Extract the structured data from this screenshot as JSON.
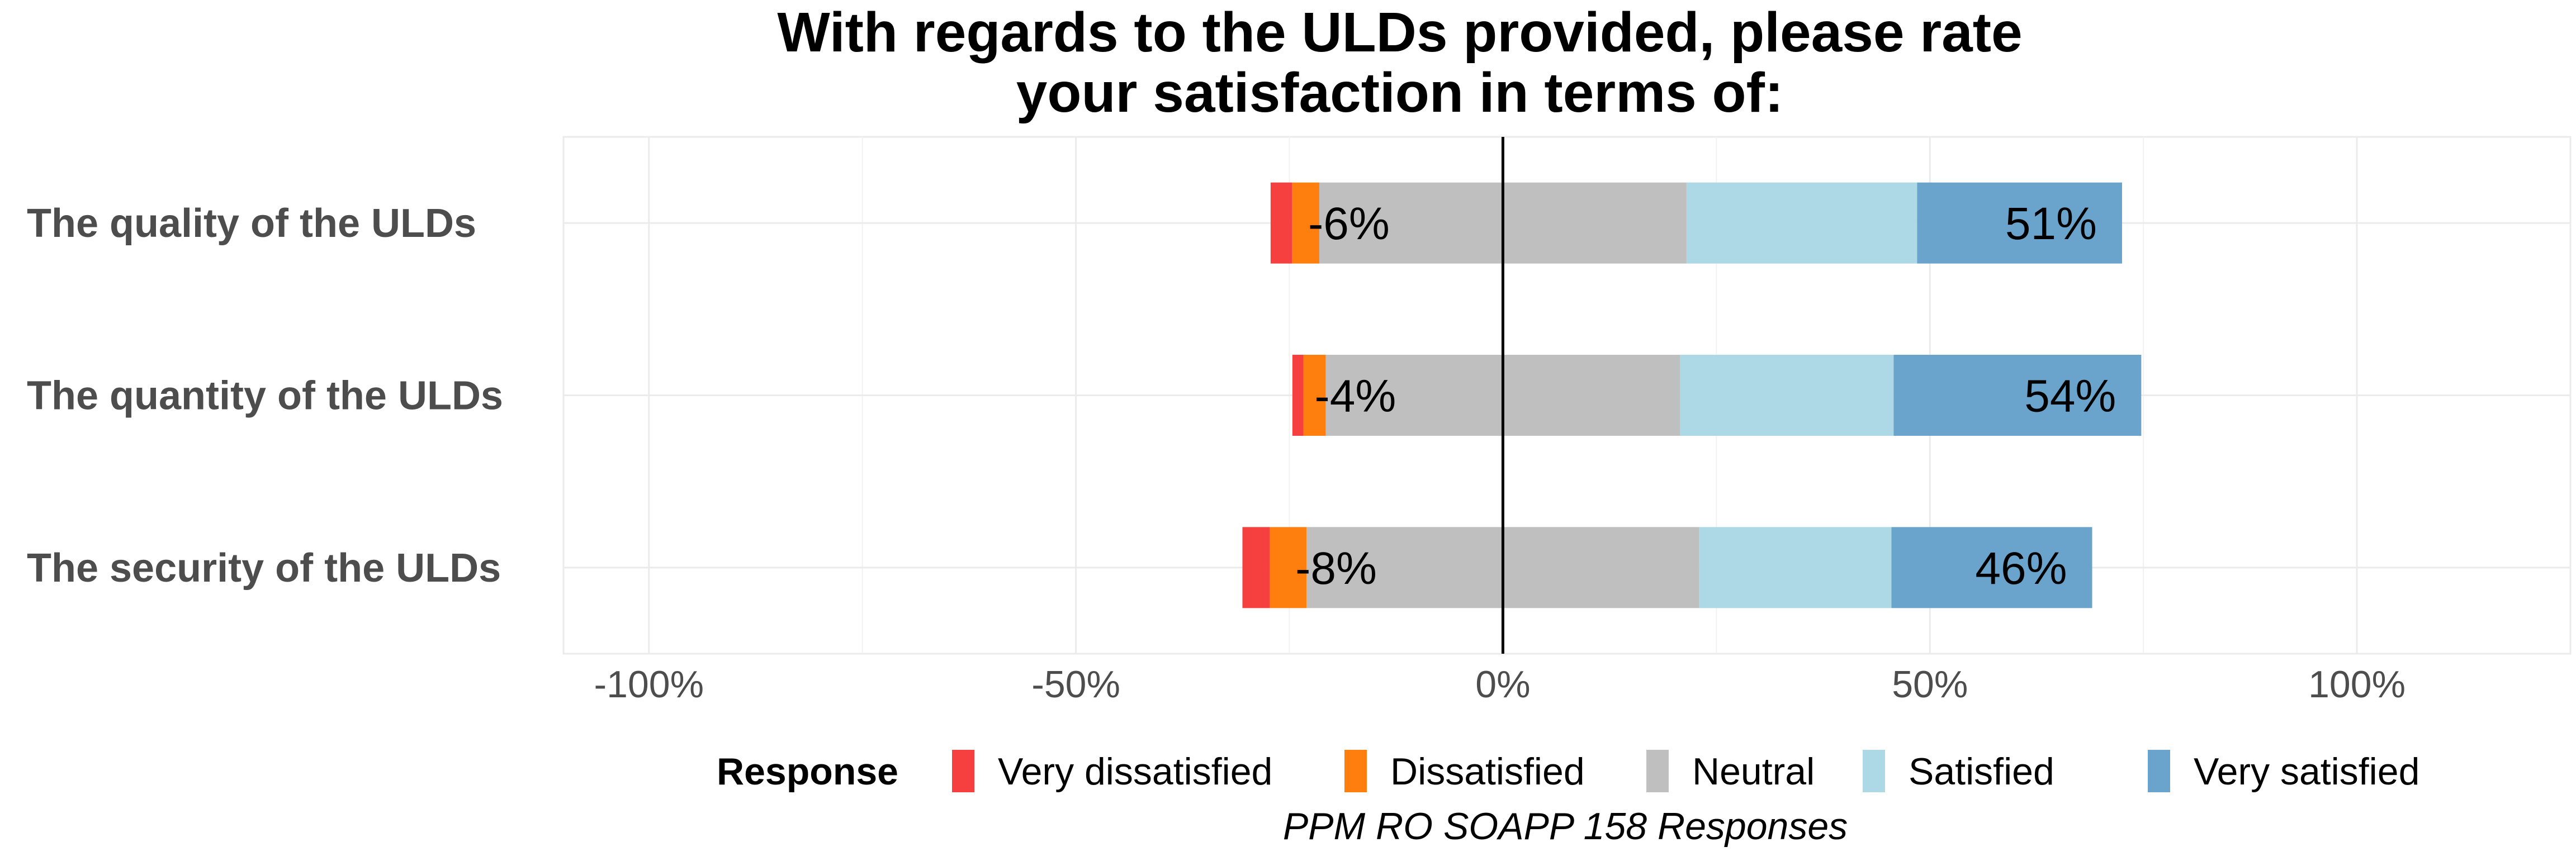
{
  "chart_data": {
    "type": "bar",
    "orientation": "horizontal",
    "stacking": "diverging",
    "title_lines": [
      "With regards to the ULDs provided, please rate",
      "your satisfaction in terms of:"
    ],
    "categories": [
      "The quality of the ULDs",
      "The quantity of the ULDs",
      "The security of the ULDs"
    ],
    "series": [
      {
        "name": "Very dissatisfied",
        "color": "#f5403f",
        "values": [
          2.5,
          1.3,
          3.2
        ]
      },
      {
        "name": "Dissatisfied",
        "color": "#ff7f0e",
        "values": [
          3.2,
          2.6,
          4.3
        ]
      },
      {
        "name": "Neutral",
        "color": "#bfbfbf",
        "values": [
          43,
          41.5,
          46
        ]
      },
      {
        "name": "Satisfied",
        "color": "#add8e6",
        "values": [
          27,
          25,
          22.5
        ]
      },
      {
        "name": "Very satisfied",
        "color": "#6aa4cc",
        "values": [
          24,
          29,
          23.5
        ]
      }
    ],
    "negative_series": [
      "Very dissatisfied",
      "Dissatisfied"
    ],
    "neutral_series": "Neutral",
    "positive_series": [
      "Satisfied",
      "Very satisfied"
    ],
    "neg_labels": [
      "-6%",
      "-4%",
      "-8%"
    ],
    "pos_labels": [
      "51%",
      "54%",
      "46%"
    ],
    "xlim": [
      -110,
      125
    ],
    "x_ticks": [
      -100,
      -50,
      0,
      50,
      100
    ],
    "x_tick_labels": [
      "-100%",
      "-50%",
      "0%",
      "50%",
      "100%"
    ],
    "grid": true,
    "legend": {
      "title": "Response",
      "position": "bottom",
      "entries": [
        "Very dissatisfied",
        "Dissatisfied",
        "Neutral",
        "Satisfied",
        "Very satisfied"
      ]
    },
    "caption": "PPM RO SOAPP 158 Responses"
  }
}
